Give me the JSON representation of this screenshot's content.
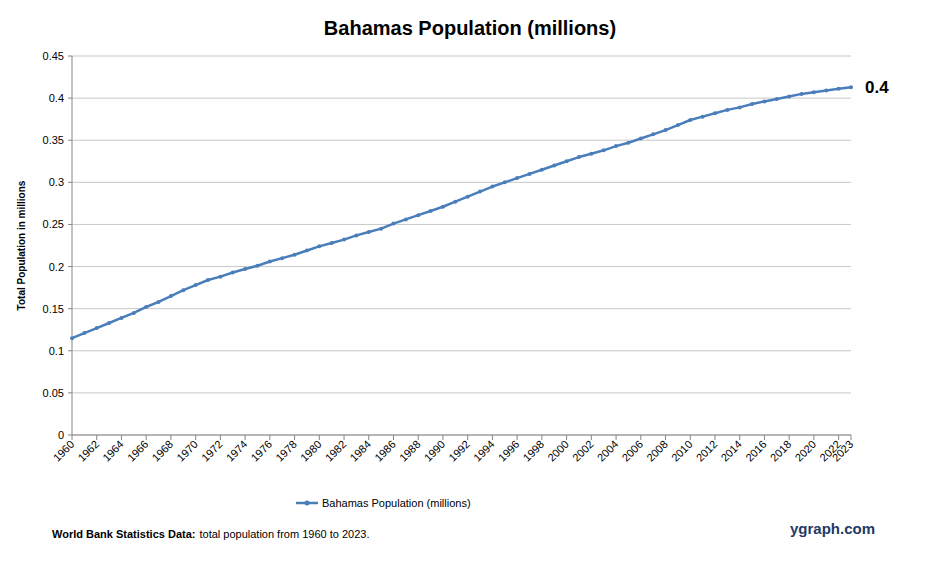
{
  "chart_data": {
    "type": "line",
    "title": "Bahamas Population (millions)",
    "y_label": "Total Population  in millions",
    "annotations": [
      "0.4"
    ],
    "source_label": "World Bank Statistics Data:",
    "source_text": "total population from 1960 to 2023.",
    "watermark": "ygraph.com",
    "x": [
      1960,
      1961,
      1962,
      1963,
      1964,
      1965,
      1966,
      1967,
      1968,
      1969,
      1970,
      1971,
      1972,
      1973,
      1974,
      1975,
      1976,
      1977,
      1978,
      1979,
      1980,
      1981,
      1982,
      1983,
      1984,
      1985,
      1986,
      1987,
      1988,
      1989,
      1990,
      1991,
      1992,
      1993,
      1994,
      1995,
      1996,
      1997,
      1998,
      1999,
      2000,
      2001,
      2002,
      2003,
      2004,
      2005,
      2006,
      2007,
      2008,
      2009,
      2010,
      2011,
      2012,
      2013,
      2014,
      2015,
      2016,
      2017,
      2018,
      2019,
      2020,
      2021,
      2022,
      2023
    ],
    "series": [
      {
        "name": "Bahamas Population (millions)",
        "color": "#4a7ebb",
        "marker": "circle",
        "values": [
          0.115,
          0.121,
          0.127,
          0.133,
          0.139,
          0.145,
          0.152,
          0.158,
          0.165,
          0.172,
          0.178,
          0.184,
          0.188,
          0.193,
          0.197,
          0.201,
          0.206,
          0.21,
          0.214,
          0.219,
          0.224,
          0.228,
          0.232,
          0.237,
          0.241,
          0.245,
          0.251,
          0.256,
          0.261,
          0.266,
          0.271,
          0.277,
          0.283,
          0.289,
          0.295,
          0.3,
          0.305,
          0.31,
          0.315,
          0.32,
          0.325,
          0.33,
          0.334,
          0.338,
          0.343,
          0.347,
          0.352,
          0.357,
          0.362,
          0.368,
          0.374,
          0.378,
          0.382,
          0.386,
          0.389,
          0.393,
          0.396,
          0.399,
          0.402,
          0.405,
          0.407,
          0.409,
          0.411,
          0.413
        ]
      }
    ],
    "xlim": [
      1960,
      2023
    ],
    "xticks": [
      1960,
      1962,
      1964,
      1966,
      1968,
      1970,
      1972,
      1974,
      1976,
      1978,
      1980,
      1982,
      1984,
      1986,
      1988,
      1990,
      1992,
      1994,
      1996,
      1998,
      2000,
      2002,
      2004,
      2006,
      2008,
      2010,
      2012,
      2014,
      2016,
      2018,
      2020,
      2022,
      2023
    ],
    "ylim": [
      0,
      0.45
    ],
    "yticks": [
      0,
      0.05,
      0.1,
      0.15,
      0.2,
      0.25,
      0.3,
      0.35,
      0.4,
      0.45
    ],
    "grid": true,
    "legend": "bottom"
  }
}
